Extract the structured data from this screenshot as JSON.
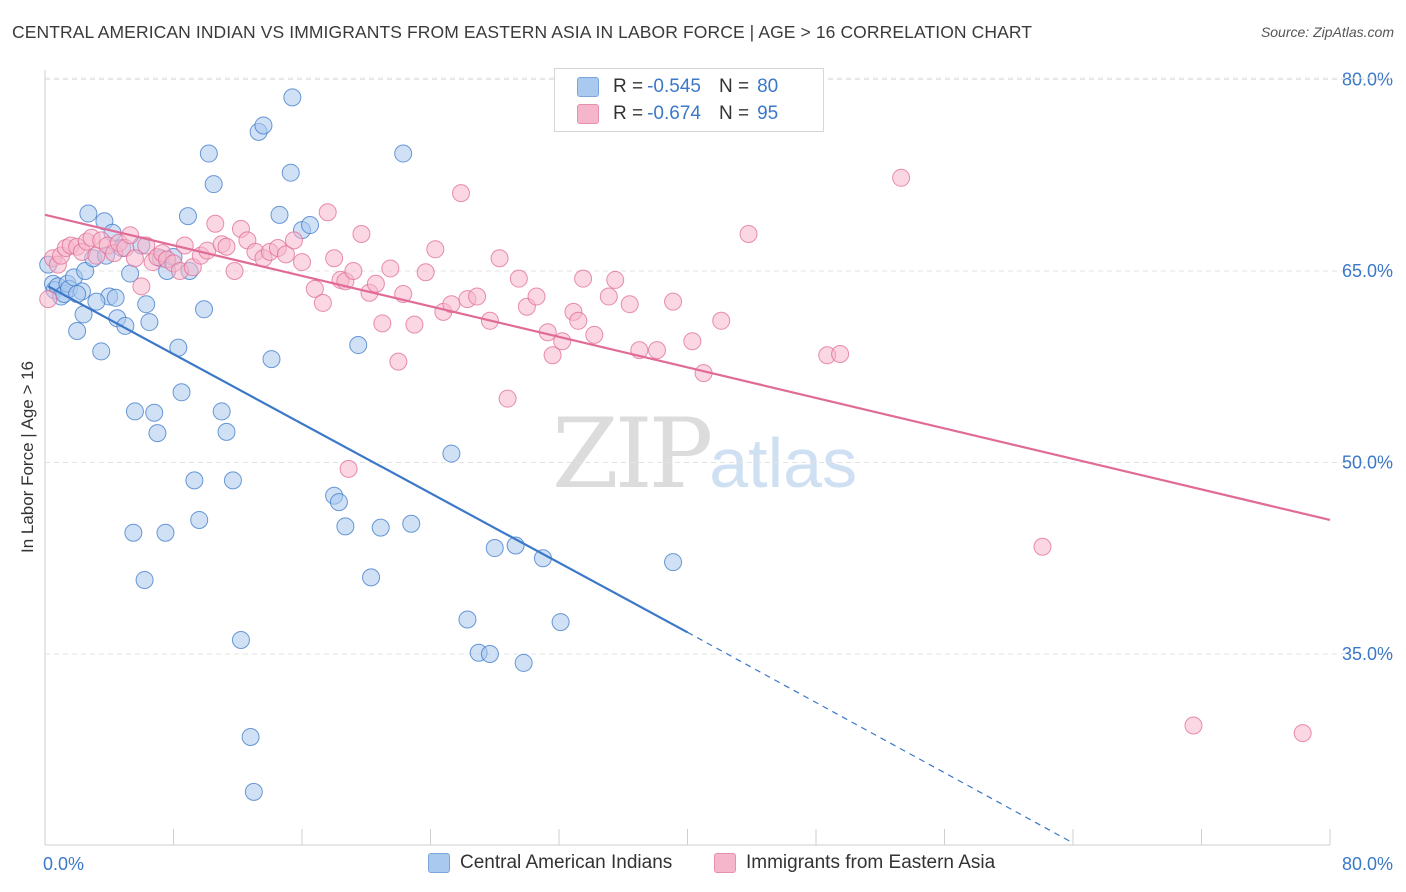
{
  "title": "CENTRAL AMERICAN INDIAN VS IMMIGRANTS FROM EASTERN ASIA IN LABOR FORCE | AGE > 16 CORRELATION CHART",
  "source": "Source: ZipAtlas.com",
  "watermark": {
    "zip": "ZIP",
    "atlas": "atlas"
  },
  "legend": [
    {
      "r_label": "R =",
      "r_value": "-0.545",
      "n_label": "N =",
      "n_value": "80"
    },
    {
      "r_label": "R =",
      "r_value": "-0.674",
      "n_label": "N =",
      "n_value": "95"
    }
  ],
  "chart_data": {
    "type": "scatter",
    "title": "CENTRAL AMERICAN INDIAN VS IMMIGRANTS FROM EASTERN ASIA IN LABOR FORCE | AGE > 16 CORRELATION CHART",
    "xlabel": "",
    "ylabel": "In Labor Force | Age > 16",
    "xlim": [
      0,
      80
    ],
    "ylim": [
      20,
      85
    ],
    "x_tick_labels": [
      "0.0%",
      "80.0%"
    ],
    "y_ticks": [
      35,
      50,
      65,
      80
    ],
    "y_tick_labels": [
      "35.0%",
      "50.0%",
      "65.0%",
      "80.0%"
    ],
    "grid": true,
    "legend_position": "top-center",
    "colors": {
      "blue": "#3b78c8",
      "blue_fill": "#a9c9ef",
      "pink": "#e06b97",
      "pink_fill": "#f5b6cb",
      "tick_label": "#3b78c8"
    },
    "series": [
      {
        "name": "Central American Indians",
        "color": "#3b78c8",
        "fill": "#a9c9ef",
        "r": -0.545,
        "n": 80,
        "trend": {
          "x1": 0.2,
          "y1": 63.8,
          "x2": 40.0,
          "y2": 36.7,
          "dash_x2": 64.0,
          "dash_y2": 20.2
        },
        "points": [
          [
            0.2,
            65.5
          ],
          [
            0.5,
            64.0
          ],
          [
            0.6,
            63.5
          ],
          [
            0.8,
            63.8
          ],
          [
            1.0,
            63.0
          ],
          [
            1.2,
            63.2
          ],
          [
            1.4,
            64.0
          ],
          [
            1.5,
            63.6
          ],
          [
            1.8,
            64.5
          ],
          [
            2.0,
            60.3
          ],
          [
            2.3,
            63.4
          ],
          [
            2.5,
            65.0
          ],
          [
            2.7,
            69.5
          ],
          [
            3.0,
            66.0
          ],
          [
            3.5,
            58.7
          ],
          [
            3.7,
            68.9
          ],
          [
            3.8,
            66.2
          ],
          [
            4.0,
            63.0
          ],
          [
            4.2,
            68.0
          ],
          [
            4.5,
            61.3
          ],
          [
            4.8,
            66.8
          ],
          [
            5.0,
            60.7
          ],
          [
            5.3,
            64.8
          ],
          [
            5.6,
            54.0
          ],
          [
            6.0,
            67.0
          ],
          [
            6.3,
            62.4
          ],
          [
            6.5,
            61.0
          ],
          [
            6.8,
            53.9
          ],
          [
            7.0,
            52.3
          ],
          [
            7.2,
            66.0
          ],
          [
            7.6,
            65.0
          ],
          [
            8.0,
            66.1
          ],
          [
            8.3,
            59.0
          ],
          [
            8.5,
            55.5
          ],
          [
            8.9,
            69.3
          ],
          [
            9.0,
            65.0
          ],
          [
            9.3,
            48.6
          ],
          [
            9.6,
            45.5
          ],
          [
            10.2,
            74.2
          ],
          [
            10.5,
            71.8
          ],
          [
            11.0,
            54.0
          ],
          [
            11.3,
            52.4
          ],
          [
            11.7,
            48.6
          ],
          [
            12.2,
            36.1
          ],
          [
            12.8,
            28.5
          ],
          [
            13.0,
            24.2
          ],
          [
            13.3,
            75.9
          ],
          [
            13.6,
            76.4
          ],
          [
            14.1,
            58.1
          ],
          [
            14.6,
            69.4
          ],
          [
            15.3,
            72.7
          ],
          [
            15.4,
            78.6
          ],
          [
            16.0,
            68.2
          ],
          [
            16.5,
            68.6
          ],
          [
            18.0,
            47.4
          ],
          [
            18.3,
            46.9
          ],
          [
            18.7,
            45.0
          ],
          [
            19.5,
            59.2
          ],
          [
            20.3,
            41.0
          ],
          [
            20.9,
            44.9
          ],
          [
            22.3,
            74.2
          ],
          [
            22.8,
            45.2
          ],
          [
            25.3,
            50.7
          ],
          [
            26.3,
            37.7
          ],
          [
            27.0,
            35.1
          ],
          [
            27.7,
            35.0
          ],
          [
            28.0,
            43.3
          ],
          [
            29.3,
            43.5
          ],
          [
            29.8,
            34.3
          ],
          [
            31.0,
            42.5
          ],
          [
            32.1,
            37.5
          ],
          [
            39.1,
            42.2
          ],
          [
            2.0,
            63.2
          ],
          [
            3.2,
            62.6
          ],
          [
            2.4,
            61.6
          ],
          [
            5.5,
            44.5
          ],
          [
            6.2,
            40.8
          ],
          [
            7.5,
            44.5
          ],
          [
            4.4,
            62.9
          ],
          [
            9.9,
            62.0
          ]
        ]
      },
      {
        "name": "Immigrants from Eastern Asia",
        "color": "#e06b97",
        "fill": "#f5b6cb",
        "r": -0.674,
        "n": 95,
        "trend": {
          "x1": 0.0,
          "y1": 69.4,
          "x2": 80.0,
          "y2": 45.5
        },
        "points": [
          [
            0.2,
            62.8
          ],
          [
            0.5,
            66.0
          ],
          [
            0.8,
            65.5
          ],
          [
            1.0,
            66.2
          ],
          [
            1.3,
            66.8
          ],
          [
            1.6,
            67.0
          ],
          [
            2.0,
            66.9
          ],
          [
            2.3,
            66.5
          ],
          [
            2.6,
            67.3
          ],
          [
            2.9,
            67.6
          ],
          [
            3.2,
            66.2
          ],
          [
            3.5,
            67.4
          ],
          [
            3.9,
            67.0
          ],
          [
            4.3,
            66.4
          ],
          [
            4.6,
            67.2
          ],
          [
            5.0,
            66.8
          ],
          [
            5.3,
            67.8
          ],
          [
            5.6,
            66.0
          ],
          [
            6.0,
            63.8
          ],
          [
            6.3,
            67.0
          ],
          [
            6.7,
            65.7
          ],
          [
            7.0,
            66.1
          ],
          [
            7.3,
            66.4
          ],
          [
            7.6,
            65.9
          ],
          [
            8.0,
            65.6
          ],
          [
            8.4,
            65.0
          ],
          [
            8.7,
            67.0
          ],
          [
            9.2,
            65.3
          ],
          [
            9.7,
            66.2
          ],
          [
            10.1,
            66.6
          ],
          [
            10.6,
            68.7
          ],
          [
            11.0,
            67.1
          ],
          [
            11.3,
            66.9
          ],
          [
            11.8,
            65.0
          ],
          [
            12.2,
            68.3
          ],
          [
            12.6,
            67.4
          ],
          [
            13.1,
            66.5
          ],
          [
            13.6,
            66.0
          ],
          [
            14.0,
            66.5
          ],
          [
            14.5,
            66.8
          ],
          [
            15.0,
            66.3
          ],
          [
            15.5,
            67.4
          ],
          [
            16.0,
            65.7
          ],
          [
            16.8,
            63.6
          ],
          [
            17.3,
            62.5
          ],
          [
            18.0,
            66.0
          ],
          [
            18.4,
            64.3
          ],
          [
            18.7,
            64.2
          ],
          [
            19.2,
            65.0
          ],
          [
            19.7,
            67.9
          ],
          [
            20.2,
            63.3
          ],
          [
            20.6,
            64.0
          ],
          [
            21.0,
            60.9
          ],
          [
            21.5,
            65.2
          ],
          [
            22.0,
            57.9
          ],
          [
            22.3,
            63.2
          ],
          [
            23.0,
            60.8
          ],
          [
            23.7,
            64.9
          ],
          [
            24.3,
            66.7
          ],
          [
            24.8,
            61.8
          ],
          [
            25.3,
            62.4
          ],
          [
            25.9,
            71.1
          ],
          [
            26.3,
            62.8
          ],
          [
            26.9,
            63.0
          ],
          [
            27.7,
            61.1
          ],
          [
            28.3,
            66.0
          ],
          [
            28.8,
            55.0
          ],
          [
            29.5,
            64.4
          ],
          [
            30.0,
            62.2
          ],
          [
            30.6,
            63.0
          ],
          [
            31.3,
            60.2
          ],
          [
            31.6,
            58.4
          ],
          [
            32.2,
            59.5
          ],
          [
            32.9,
            61.8
          ],
          [
            33.2,
            61.1
          ],
          [
            33.5,
            64.4
          ],
          [
            34.2,
            60.0
          ],
          [
            35.1,
            63.0
          ],
          [
            35.5,
            64.3
          ],
          [
            36.4,
            62.4
          ],
          [
            37.0,
            58.8
          ],
          [
            38.1,
            58.8
          ],
          [
            39.1,
            62.6
          ],
          [
            40.3,
            59.5
          ],
          [
            41.0,
            57.0
          ],
          [
            42.1,
            61.1
          ],
          [
            43.8,
            67.9
          ],
          [
            48.7,
            58.4
          ],
          [
            49.5,
            58.5
          ],
          [
            53.3,
            72.3
          ],
          [
            62.1,
            43.4
          ],
          [
            71.5,
            29.4
          ],
          [
            78.3,
            28.8
          ],
          [
            17.6,
            69.6
          ],
          [
            18.9,
            49.5
          ]
        ]
      }
    ]
  },
  "bottom_legend": [
    {
      "label": "Central American Indians"
    },
    {
      "label": "Immigrants from Eastern Asia"
    }
  ]
}
